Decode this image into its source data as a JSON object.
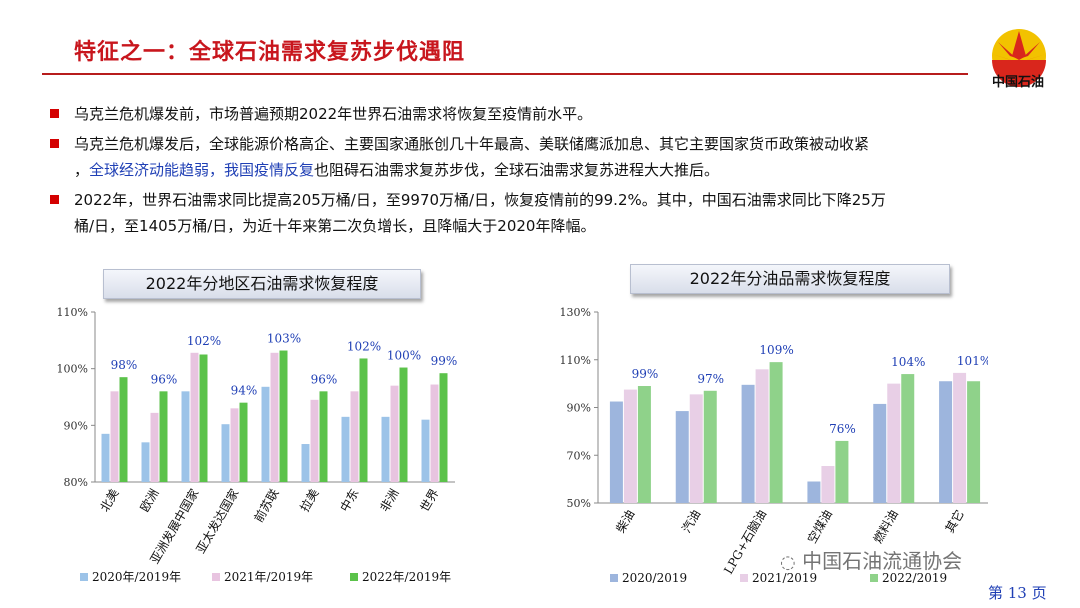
{
  "header": {
    "title": "特征之一：全球石油需求复苏步伐遇阻",
    "logo_text": "中国石油",
    "accent_color": "#c8161d"
  },
  "bullets": [
    {
      "text": "乌克兰危机爆发前，市场普遍预期2022年世界石油需求将恢复至疫情前水平。"
    },
    {
      "line1": "乌克兰危机爆发后，全球能源价格高企、主要国家通胀创几十年最高、美联储鹰派加息、其它主要国家货币政策被动收紧",
      "line2_pre": "，",
      "line2_hl": "全球经济动能趋弱，我国疫情反复",
      "line2_post": "也阻碍石油需求复苏步伐，全球石油需求复苏进程大大推后。"
    },
    {
      "line1": "2022年，世界石油需求同比提高205万桶/日，至9970万桶/日，恢复疫情前的99.2%。其中，中国石油需求同比下降25万",
      "line2": "桶/日，至1405万桶/日，为近十年来第二次负增长，且降幅大于2020年降幅。"
    }
  ],
  "chart_data": [
    {
      "type": "bar",
      "title": "2022年分地区石油需求恢复程度",
      "categories": [
        "北美",
        "欧洲",
        "亚洲发展中国家",
        "亚太发达国家",
        "前苏联",
        "拉美",
        "中东",
        "非洲",
        "世界"
      ],
      "ylim": [
        80,
        110
      ],
      "yticks": [
        "80%",
        "90%",
        "100%",
        "110%"
      ],
      "series": [
        {
          "name": "2020年/2019年",
          "color": "#9cc3e8",
          "values": [
            88.5,
            87.0,
            96.0,
            90.2,
            96.8,
            86.7,
            91.5,
            91.5,
            91.0
          ]
        },
        {
          "name": "2021年/2019年",
          "color": "#e8c4e0",
          "values": [
            96.0,
            92.2,
            102.8,
            93.0,
            102.8,
            94.5,
            96.0,
            97.0,
            97.2
          ]
        },
        {
          "name": "2022年/2019年",
          "color": "#5bc24a",
          "values": [
            98.5,
            96.0,
            102.5,
            94.0,
            103.2,
            96.0,
            101.8,
            100.2,
            99.2
          ]
        }
      ],
      "data_labels": [
        "98%",
        "96%",
        "102%",
        "94%",
        "103%",
        "96%",
        "102%",
        "100%",
        "99%"
      ],
      "legend": "bottom"
    },
    {
      "type": "bar",
      "title": "2022年分油品需求恢复程度",
      "categories": [
        "柴油",
        "汽油",
        "LPG+石脑油",
        "空煤油",
        "燃料油",
        "其它"
      ],
      "ylim": [
        50,
        130
      ],
      "yticks": [
        "50%",
        "70%",
        "90%",
        "110%",
        "130%"
      ],
      "series": [
        {
          "name": "2020/2019",
          "color": "#9db5dd",
          "values": [
            92.5,
            88.5,
            99.5,
            59.0,
            91.5,
            101.0
          ]
        },
        {
          "name": "2021/2019",
          "color": "#e8cfe6",
          "values": [
            97.5,
            95.5,
            106.0,
            65.5,
            100.0,
            104.5
          ]
        },
        {
          "name": "2022/2019",
          "color": "#8fd28a",
          "values": [
            99.0,
            97.0,
            109.0,
            76.0,
            104.0,
            101.0
          ]
        }
      ],
      "data_labels": [
        "99%",
        "97%",
        "109%",
        "76%",
        "104%",
        "101%"
      ],
      "legend": "bottom"
    }
  ],
  "footer": {
    "watermark": "中国石油流通协会",
    "page": "第 13 页"
  }
}
